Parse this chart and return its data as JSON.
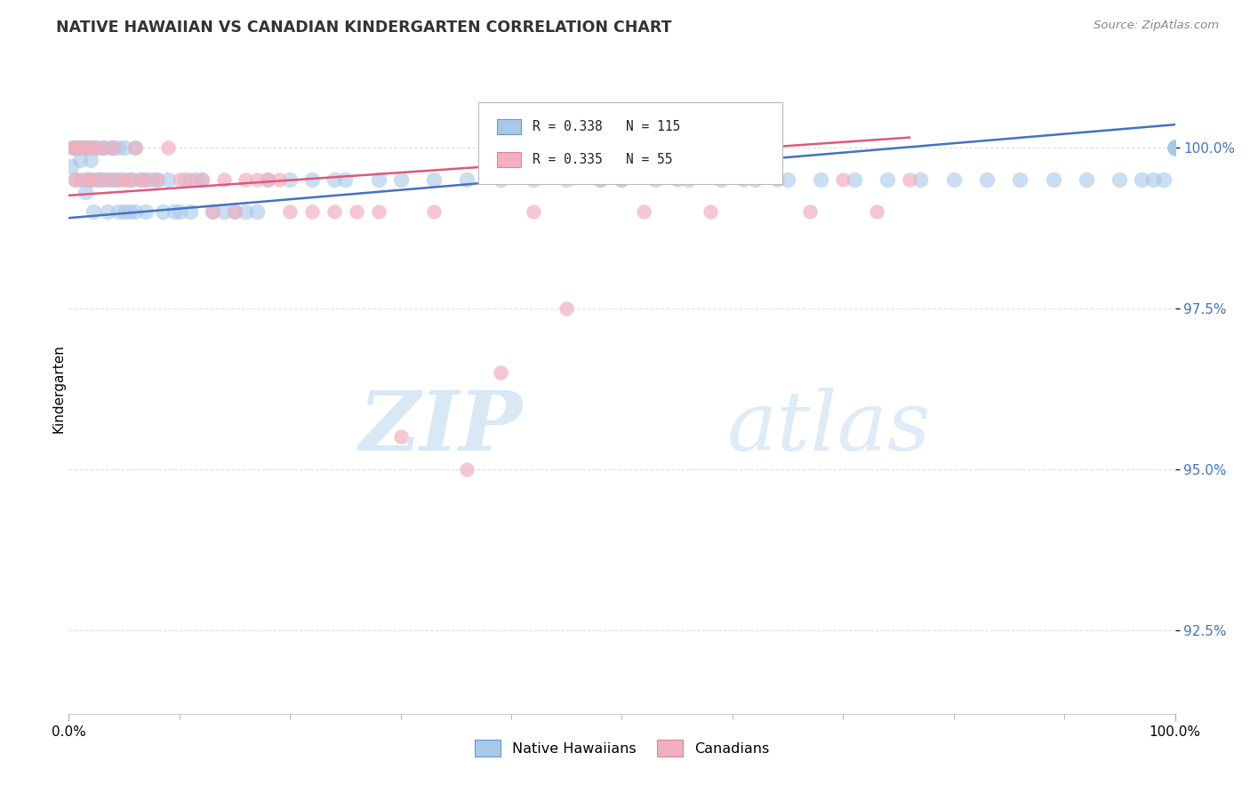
{
  "title": "NATIVE HAWAIIAN VS CANADIAN KINDERGARTEN CORRELATION CHART",
  "source": "Source: ZipAtlas.com",
  "ylabel": "Kindergarten",
  "yticks": [
    92.5,
    95.0,
    97.5,
    100.0
  ],
  "ytick_labels": [
    "92.5%",
    "95.0%",
    "97.5%",
    "100.0%"
  ],
  "xlim": [
    0,
    100
  ],
  "ylim": [
    91.2,
    101.3
  ],
  "blue_color": "#a8c8e8",
  "pink_color": "#f0b0c0",
  "blue_line_color": "#4472c4",
  "pink_line_color": "#e05878",
  "legend_blue_label": "R = 0.338   N = 115",
  "legend_pink_label": "R = 0.335   N = 55",
  "watermark_zip": "ZIP",
  "watermark_atlas": "atlas",
  "background_color": "#ffffff",
  "grid_color": "#e0e0e0",
  "native_hawaiians_x": [
    0.2,
    0.4,
    0.5,
    0.6,
    0.8,
    1.0,
    1.0,
    1.2,
    1.4,
    1.5,
    1.5,
    1.6,
    1.8,
    2.0,
    2.0,
    2.0,
    2.2,
    2.2,
    2.5,
    2.5,
    2.8,
    3.0,
    3.0,
    3.2,
    3.5,
    3.5,
    3.8,
    4.0,
    4.0,
    4.2,
    4.5,
    4.5,
    4.8,
    5.0,
    5.0,
    5.5,
    5.5,
    5.8,
    6.0,
    6.0,
    6.5,
    7.0,
    7.0,
    7.5,
    8.0,
    8.5,
    9.0,
    9.5,
    10.0,
    10.5,
    11.0,
    11.5,
    12.0,
    13.0,
    14.0,
    15.0,
    16.0,
    17.0,
    18.0,
    20.0,
    22.0,
    24.0,
    25.0,
    28.0,
    30.0,
    33.0,
    36.0,
    39.0,
    42.0,
    45.0,
    48.0,
    50.0,
    53.0,
    56.0,
    59.0,
    62.0,
    65.0,
    68.0,
    71.0,
    74.0,
    77.0,
    80.0,
    83.0,
    86.0,
    89.0,
    92.0,
    95.0,
    97.0,
    98.0,
    99.0,
    100.0,
    100.0,
    100.0,
    100.0,
    100.0,
    100.0,
    100.0,
    100.0,
    100.0,
    100.0,
    100.0,
    100.0,
    100.0,
    100.0,
    100.0,
    100.0,
    100.0,
    100.0,
    100.0,
    100.0,
    100.0,
    100.0,
    100.0,
    100.0,
    100.0
  ],
  "native_hawaiians_y": [
    99.7,
    100.0,
    100.0,
    99.5,
    100.0,
    100.0,
    99.8,
    100.0,
    99.5,
    100.0,
    99.3,
    100.0,
    99.5,
    100.0,
    99.8,
    99.5,
    100.0,
    99.0,
    100.0,
    99.5,
    99.5,
    100.0,
    99.5,
    100.0,
    99.5,
    99.0,
    100.0,
    100.0,
    99.5,
    99.5,
    100.0,
    99.0,
    99.5,
    100.0,
    99.0,
    99.5,
    99.0,
    99.5,
    100.0,
    99.0,
    99.5,
    99.5,
    99.0,
    99.5,
    99.5,
    99.0,
    99.5,
    99.0,
    99.0,
    99.5,
    99.0,
    99.5,
    99.5,
    99.0,
    99.0,
    99.0,
    99.0,
    99.0,
    99.5,
    99.5,
    99.5,
    99.5,
    99.5,
    99.5,
    99.5,
    99.5,
    99.5,
    99.5,
    99.5,
    99.5,
    99.5,
    99.5,
    99.5,
    99.5,
    99.5,
    99.5,
    99.5,
    99.5,
    99.5,
    99.5,
    99.5,
    99.5,
    99.5,
    99.5,
    99.5,
    99.5,
    99.5,
    99.5,
    99.5,
    99.5,
    100.0,
    100.0,
    100.0,
    100.0,
    100.0,
    100.0,
    100.0,
    100.0,
    100.0,
    100.0,
    100.0,
    100.0,
    100.0,
    100.0,
    100.0,
    100.0,
    100.0,
    100.0,
    100.0,
    100.0,
    100.0,
    100.0,
    100.0,
    100.0,
    100.0
  ],
  "canadians_x": [
    0.3,
    0.5,
    0.7,
    1.0,
    1.0,
    1.2,
    1.5,
    1.8,
    2.0,
    2.0,
    2.5,
    2.8,
    3.0,
    3.5,
    4.0,
    4.5,
    5.0,
    5.5,
    6.0,
    6.5,
    7.0,
    8.0,
    9.0,
    10.0,
    11.0,
    12.0,
    13.0,
    14.0,
    15.0,
    16.0,
    17.0,
    18.0,
    19.0,
    20.0,
    22.0,
    24.0,
    26.0,
    28.0,
    30.0,
    33.0,
    36.0,
    39.0,
    42.0,
    45.0,
    48.0,
    50.0,
    52.0,
    55.0,
    58.0,
    61.0,
    64.0,
    67.0,
    70.0,
    73.0,
    76.0
  ],
  "canadians_y": [
    100.0,
    99.5,
    100.0,
    100.0,
    99.5,
    100.0,
    100.0,
    99.5,
    100.0,
    99.5,
    100.0,
    99.5,
    100.0,
    99.5,
    100.0,
    99.5,
    99.5,
    99.5,
    100.0,
    99.5,
    99.5,
    99.5,
    100.0,
    99.5,
    99.5,
    99.5,
    99.0,
    99.5,
    99.0,
    99.5,
    99.5,
    99.5,
    99.5,
    99.0,
    99.0,
    99.0,
    99.0,
    99.0,
    95.5,
    99.0,
    95.0,
    96.5,
    99.0,
    97.5,
    99.5,
    99.5,
    99.0,
    99.5,
    99.0,
    99.5,
    99.5,
    99.0,
    99.5,
    99.0,
    99.5
  ],
  "nh_trend_x0": 0,
  "nh_trend_x1": 100,
  "nh_trend_y0": 98.9,
  "nh_trend_y1": 100.35,
  "ca_trend_x0": 0,
  "ca_trend_x1": 76,
  "ca_trend_y0": 99.25,
  "ca_trend_y1": 100.15
}
